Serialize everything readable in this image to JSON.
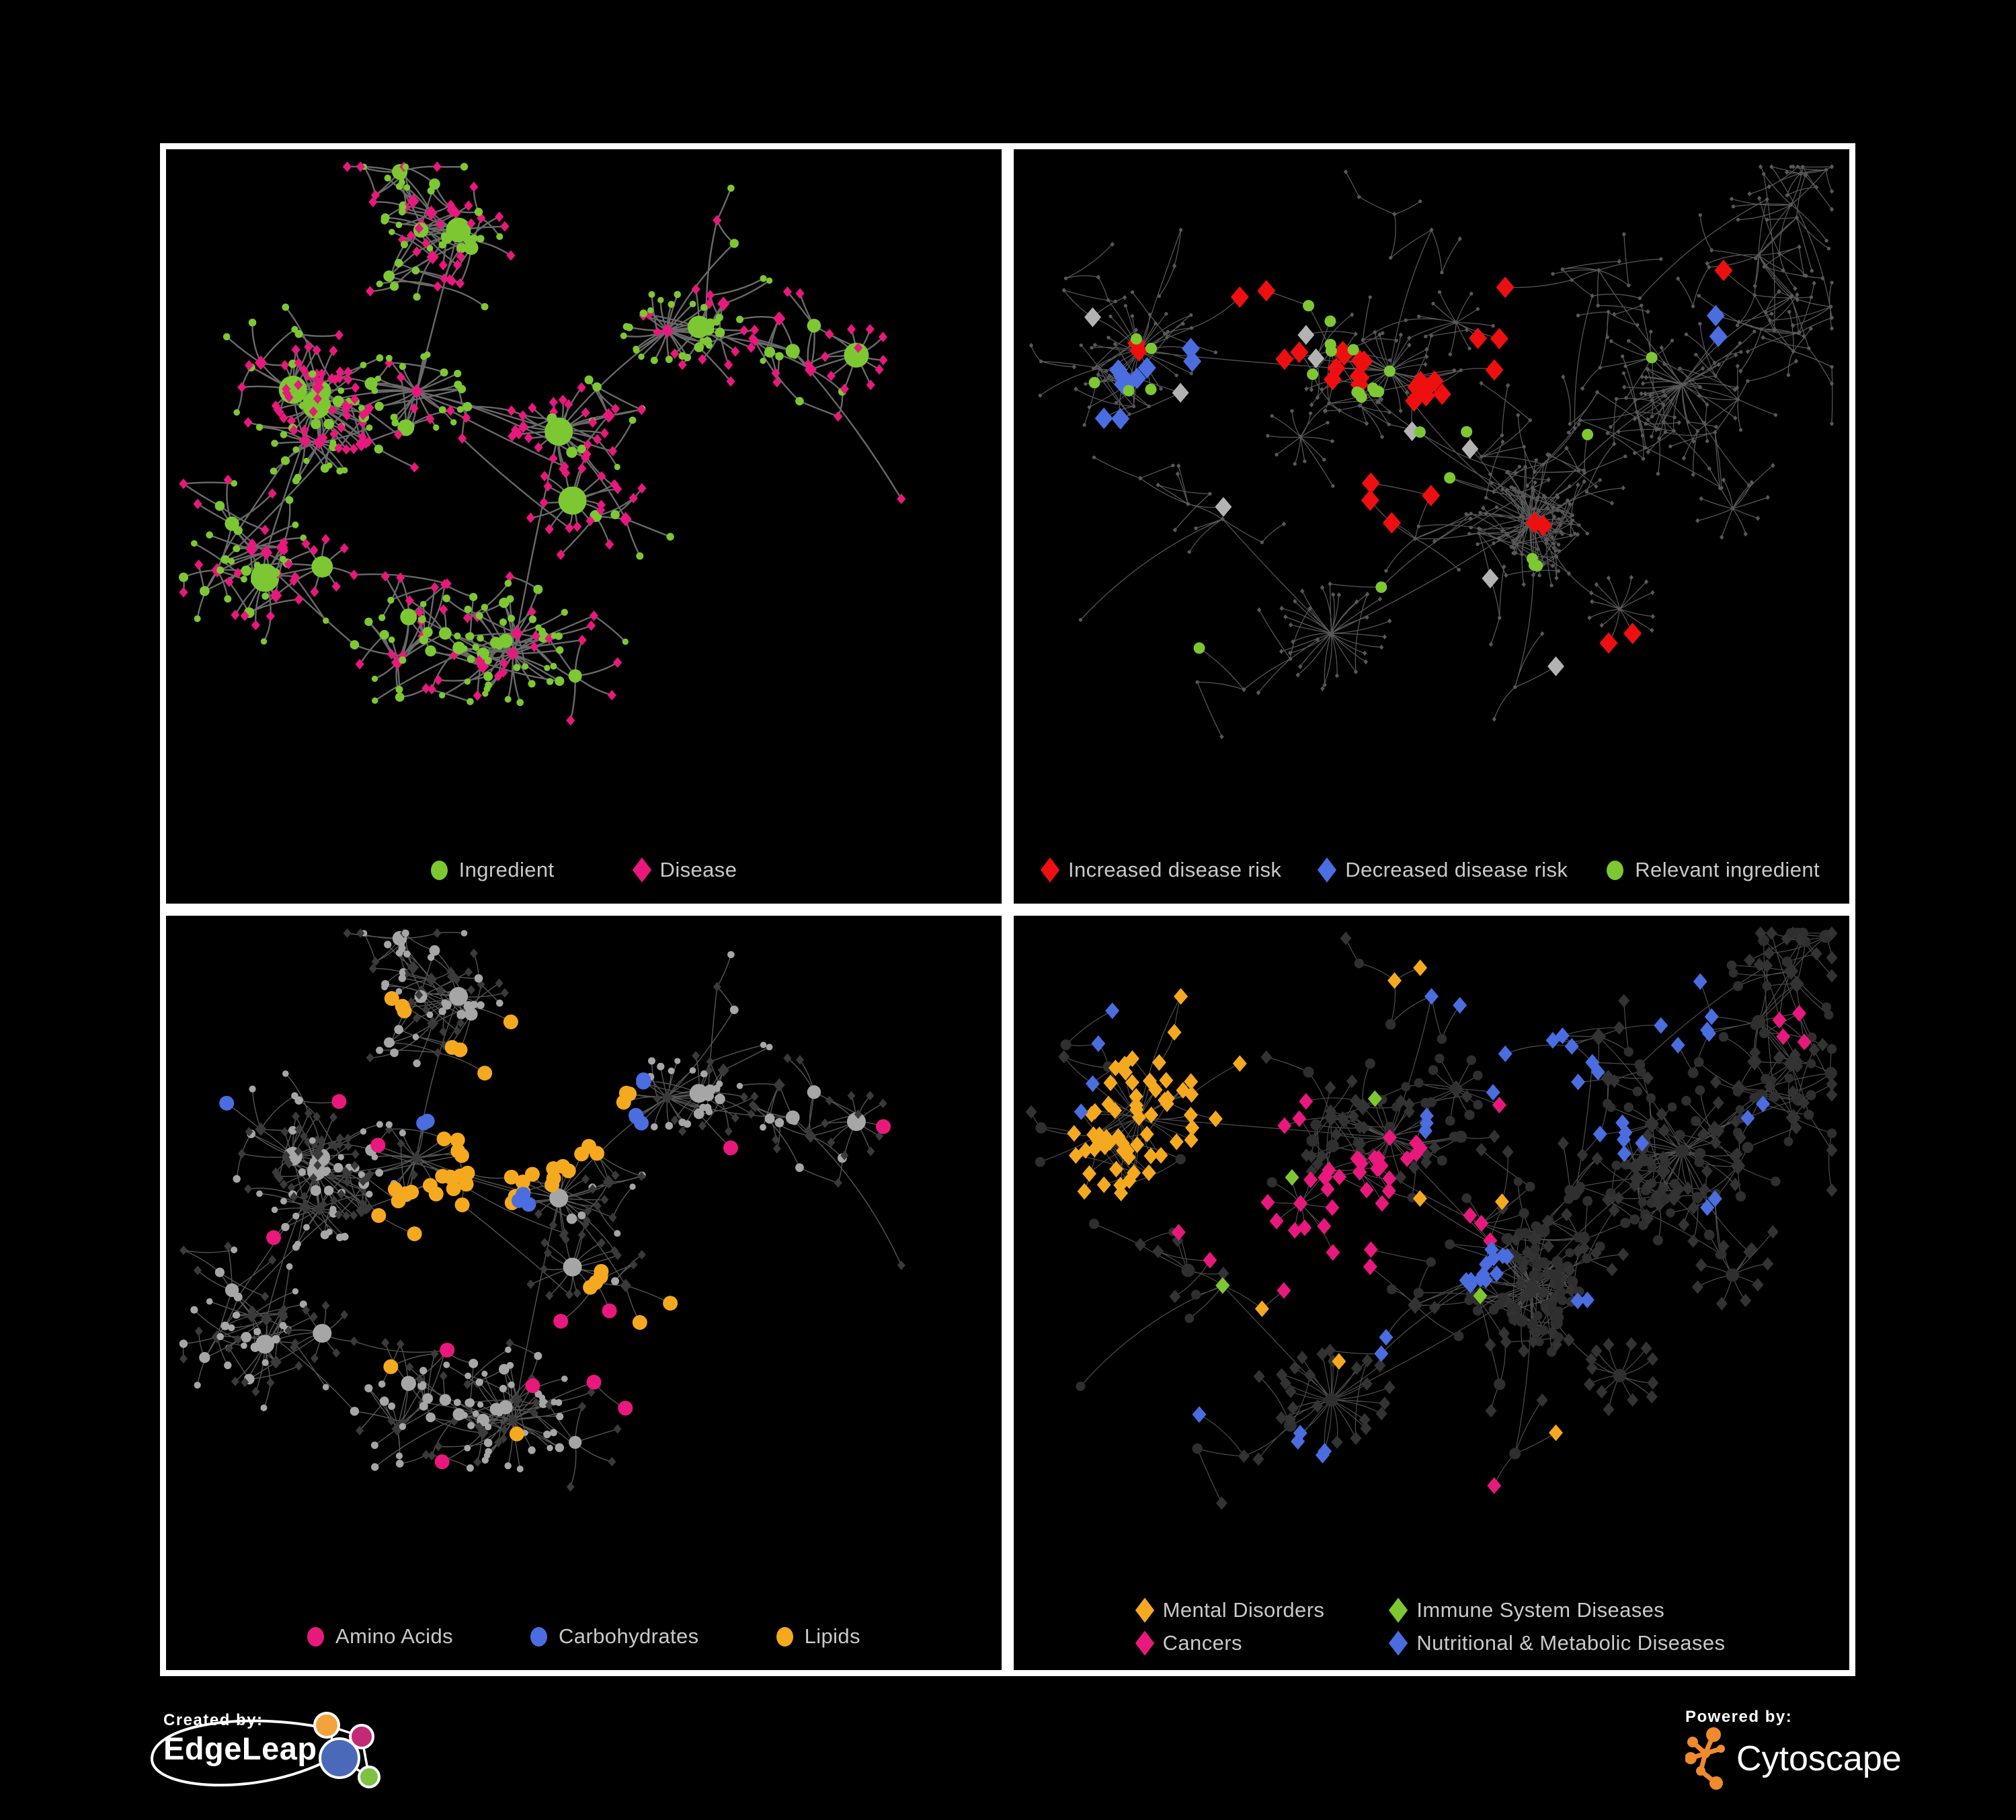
{
  "canvas": {
    "background": "#000000",
    "panel_border": "#ffffff",
    "legend_text_color": "#c9c9c9"
  },
  "palette": {
    "green": "#7dc832",
    "pink": "#e8187d",
    "red": "#ee1010",
    "blue": "#4a6de0",
    "orange": "#f5a91f",
    "gray_highlight": "#b3b3b3",
    "gray_node": "#a6a6a6",
    "dark_node": "#333333",
    "skeleton": "#585858"
  },
  "panels": [
    {
      "id": "ingredient-disease",
      "layout": "A",
      "legend_kind": "row",
      "legend_gap": 120,
      "legend": [
        {
          "label": "Ingredient",
          "shape": "circle",
          "color": "#7dc832"
        },
        {
          "label": "Disease",
          "shape": "diamond",
          "color": "#e8187d"
        }
      ],
      "style": {
        "edge": "#6f6f6f",
        "edgeW": 2.4,
        "edgeOp": 0.95,
        "mode": "bipartite",
        "circle": "#7dc832",
        "diamond": "#e8187d",
        "circleRBase": 4.6,
        "circleRDeg": 1.35,
        "circleRMax": 21,
        "diamondS": 6.6
      },
      "highlights": []
    },
    {
      "id": "disease-risk",
      "layout": "B",
      "legend_kind": "row",
      "legend_gap": 58,
      "legend": [
        {
          "label": "Increased disease risk",
          "shape": "diamond",
          "color": "#ee1010"
        },
        {
          "label": "Decreased disease risk",
          "shape": "diamond",
          "color": "#4a6de0"
        },
        {
          "label": "Relevant ingredient",
          "shape": "circle",
          "color": "#7dc832"
        }
      ],
      "style": {
        "edge": "#585858",
        "edgeW": 1.25,
        "edgeOp": 1,
        "mode": "tiny",
        "base": "#585858",
        "tinyR": 2.7,
        "tinyS": 3.2
      },
      "highlights": [
        {
          "shape": "diamond",
          "color": "#ee1010",
          "size": 13.5,
          "regions": [
            [
              0.4,
              0.33,
              0.1,
              9
            ],
            [
              0.5,
              0.38,
              0.09,
              7
            ],
            [
              0.3,
              0.27,
              0.07,
              4
            ],
            [
              0.57,
              0.3,
              0.06,
              3
            ],
            [
              0.15,
              0.3,
              0.05,
              2
            ],
            [
              0.46,
              0.52,
              0.06,
              4
            ],
            [
              0.72,
              0.73,
              0.04,
              2
            ],
            [
              0.76,
              0.79,
              0.03,
              1
            ],
            [
              0.6,
              0.13,
              0.04,
              1
            ],
            [
              0.85,
              0.17,
              0.04,
              1
            ],
            [
              0.63,
              0.55,
              0.06,
              2
            ]
          ]
        },
        {
          "shape": "diamond",
          "color": "#4a6de0",
          "size": 13.5,
          "regions": [
            [
              0.14,
              0.33,
              0.07,
              6
            ],
            [
              0.12,
              0.4,
              0.05,
              2
            ],
            [
              0.2,
              0.3,
              0.04,
              2
            ],
            [
              0.845,
              0.275,
              0.035,
              2
            ]
          ]
        },
        {
          "shape": "diamond",
          "color": "#b3b3b3",
          "size": 12.5,
          "regions": [
            [
              0.1,
              0.26,
              0.04,
              1
            ],
            [
              0.22,
              0.36,
              0.04,
              1
            ],
            [
              0.35,
              0.3,
              0.05,
              2
            ],
            [
              0.47,
              0.41,
              0.04,
              1
            ],
            [
              0.52,
              0.45,
              0.04,
              1
            ],
            [
              0.26,
              0.52,
              0.04,
              1
            ],
            [
              0.56,
              0.62,
              0.04,
              1
            ],
            [
              0.62,
              0.76,
              0.03,
              1
            ]
          ]
        },
        {
          "shape": "circle",
          "color": "#7dc832",
          "size": 8.5,
          "regions": [
            [
              0.42,
              0.33,
              0.1,
              8
            ],
            [
              0.33,
              0.28,
              0.07,
              5
            ],
            [
              0.15,
              0.32,
              0.06,
              4
            ],
            [
              0.5,
              0.45,
              0.06,
              3
            ],
            [
              0.62,
              0.62,
              0.035,
              3
            ],
            [
              0.28,
              0.13,
              0.04,
              2
            ],
            [
              0.1,
              0.35,
              0.03,
              1
            ],
            [
              0.48,
              0.66,
              0.03,
              1
            ],
            [
              0.21,
              0.73,
              0.03,
              1
            ],
            [
              0.68,
              0.42,
              0.03,
              1
            ],
            [
              0.77,
              0.31,
              0.03,
              1
            ]
          ]
        }
      ]
    },
    {
      "id": "macronutrients",
      "layout": "A",
      "legend_kind": "row",
      "legend_gap": 115,
      "legend": [
        {
          "label": "Amino Acids",
          "shape": "circle",
          "color": "#e8187d"
        },
        {
          "label": "Carbohydrates",
          "shape": "circle",
          "color": "#4a6de0"
        },
        {
          "label": "Lipids",
          "shape": "circle",
          "color": "#f5a91f"
        }
      ],
      "style": {
        "edge": "#aaaaaa",
        "edgeW": 1.4,
        "edgeOp": 0.5,
        "mode": "bipartite",
        "circle": "#a6a6a6",
        "diamond": "#3a3a3a",
        "circleRBase": 4.6,
        "circleRDeg": 1.2,
        "circleRMax": 14,
        "diamondS": 6.0
      },
      "highlights": [
        {
          "shape": "circle",
          "color": "#f5a91f",
          "size": 11,
          "regions": [
            [
              0.44,
              0.27,
              0.09,
              22
            ],
            [
              0.37,
              0.36,
              0.08,
              12
            ],
            [
              0.3,
              0.45,
              0.06,
              6
            ],
            [
              0.52,
              0.55,
              0.04,
              4
            ],
            [
              0.26,
              0.14,
              0.05,
              3
            ],
            [
              0.58,
              0.1,
              0.03,
              1
            ],
            [
              0.68,
              0.5,
              0.04,
              2
            ],
            [
              0.62,
              0.62,
              0.035,
              3
            ],
            [
              0.25,
              0.66,
              0.03,
              1
            ],
            [
              0.73,
              0.6,
              0.03,
              2
            ],
            [
              0.8,
              0.55,
              0.03,
              1
            ],
            [
              0.42,
              0.76,
              0.03,
              1
            ],
            [
              0.15,
              0.8,
              0.03,
              1
            ]
          ]
        },
        {
          "shape": "circle",
          "color": "#4a6de0",
          "size": 11,
          "regions": [
            [
              0.47,
              0.26,
              0.06,
              5
            ],
            [
              0.41,
              0.32,
              0.05,
              3
            ],
            [
              0.05,
              0.25,
              0.03,
              1
            ],
            [
              0.77,
              0.62,
              0.03,
              1
            ],
            [
              0.37,
              0.3,
              0.04,
              2
            ]
          ]
        },
        {
          "shape": "circle",
          "color": "#e8187d",
          "size": 11,
          "regions": [
            [
              0.04,
              0.3,
              0.03,
              1
            ],
            [
              0.12,
              0.47,
              0.03,
              1
            ],
            [
              0.26,
              0.34,
              0.03,
              1
            ],
            [
              0.48,
              0.03,
              0.03,
              1
            ],
            [
              0.21,
              0.25,
              0.03,
              1
            ],
            [
              0.5,
              0.62,
              0.04,
              2
            ],
            [
              0.57,
              0.7,
              0.04,
              2
            ],
            [
              0.44,
              0.7,
              0.03,
              1
            ],
            [
              0.88,
              0.3,
              0.03,
              1
            ],
            [
              0.93,
              0.36,
              0.03,
              1
            ],
            [
              0.64,
              0.36,
              0.03,
              1
            ],
            [
              0.36,
              0.62,
              0.03,
              1
            ],
            [
              0.9,
              0.75,
              0.03,
              1
            ],
            [
              0.33,
              0.87,
              0.03,
              1
            ]
          ]
        }
      ]
    },
    {
      "id": "disease-categories",
      "layout": "B",
      "legend_kind": "grid2",
      "legend": [
        {
          "label": "Mental Disorders",
          "shape": "diamond",
          "color": "#f5a91f"
        },
        {
          "label": "Immune System Diseases",
          "shape": "diamond",
          "color": "#7dc832"
        },
        {
          "label": "Cancers",
          "shape": "diamond",
          "color": "#e8187d"
        },
        {
          "label": "Nutritional & Metabolic Diseases",
          "shape": "diamond",
          "color": "#4a6de0"
        }
      ],
      "style": {
        "edge": "#999999",
        "edgeW": 1.2,
        "edgeOp": 0.5,
        "mode": "dark",
        "circle": "#2f2f2f",
        "diamond": "#333333",
        "circleRBase": 6.5,
        "circleRDeg": 0.5,
        "circleRMax": 10,
        "diamondS": 8.5
      },
      "highlights": [
        {
          "shape": "diamond",
          "color": "#f5a91f",
          "size": 10.5,
          "regions": [
            [
              0.155,
              0.3,
              0.1,
              40
            ],
            [
              0.12,
              0.38,
              0.06,
              12
            ],
            [
              0.21,
              0.24,
              0.05,
              8
            ],
            [
              0.25,
              0.08,
              0.03,
              2
            ],
            [
              0.48,
              0.06,
              0.03,
              2
            ],
            [
              0.36,
              0.12,
              0.03,
              1
            ],
            [
              0.5,
              0.42,
              0.03,
              1
            ],
            [
              0.4,
              0.65,
              0.03,
              1
            ],
            [
              0.28,
              0.6,
              0.03,
              1
            ],
            [
              0.65,
              0.8,
              0.03,
              1
            ],
            [
              0.6,
              0.42,
              0.02,
              1
            ]
          ]
        },
        {
          "shape": "diamond",
          "color": "#e8187d",
          "size": 10.5,
          "regions": [
            [
              0.41,
              0.43,
              0.09,
              22
            ],
            [
              0.34,
              0.5,
              0.06,
              8
            ],
            [
              0.46,
              0.35,
              0.05,
              6
            ],
            [
              0.3,
              0.28,
              0.04,
              3
            ],
            [
              0.55,
              0.47,
              0.04,
              3
            ],
            [
              0.93,
              0.17,
              0.035,
              4
            ],
            [
              0.55,
              0.85,
              0.03,
              1
            ],
            [
              0.78,
              0.84,
              0.03,
              1
            ],
            [
              0.25,
              0.45,
              0.03,
              2
            ],
            [
              0.6,
              0.3,
              0.03,
              1
            ]
          ]
        },
        {
          "shape": "diamond",
          "color": "#4a6de0",
          "size": 10.5,
          "regions": [
            [
              0.56,
              0.52,
              0.05,
              12
            ],
            [
              0.64,
              0.25,
              0.06,
              8
            ],
            [
              0.72,
              0.33,
              0.05,
              6
            ],
            [
              0.8,
              0.12,
              0.05,
              6
            ],
            [
              0.55,
              0.05,
              0.04,
              3
            ],
            [
              0.13,
              0.1,
              0.04,
              3
            ],
            [
              0.08,
              0.3,
              0.03,
              2
            ],
            [
              0.36,
              0.78,
              0.035,
              4
            ],
            [
              0.5,
              0.3,
              0.04,
              3
            ],
            [
              0.85,
              0.45,
              0.03,
              2
            ],
            [
              0.68,
              0.6,
              0.03,
              2
            ],
            [
              0.47,
              0.63,
              0.03,
              2
            ],
            [
              0.25,
              0.72,
              0.03,
              1
            ],
            [
              0.9,
              0.3,
              0.03,
              2
            ]
          ]
        },
        {
          "shape": "diamond",
          "color": "#7dc832",
          "size": 10.5,
          "regions": [
            [
              0.3,
              0.33,
              0.02,
              1
            ],
            [
              0.43,
              0.28,
              0.02,
              1
            ],
            [
              0.34,
              0.43,
              0.02,
              1
            ],
            [
              0.56,
              0.56,
              0.02,
              1
            ],
            [
              0.27,
              0.55,
              0.02,
              1
            ],
            [
              0.52,
              0.75,
              0.02,
              1
            ],
            [
              0.6,
              0.05,
              0.02,
              1
            ],
            [
              0.1,
              0.52,
              0.02,
              1
            ]
          ]
        }
      ]
    }
  ],
  "layouts": {
    "A": {
      "seed": 7,
      "count": 430,
      "pref": 1.35,
      "step": [
        34,
        88
      ],
      "margin": 26,
      "clusters": [
        [
          0.47,
          0.42
        ],
        [
          0.3,
          0.36
        ],
        [
          0.6,
          0.27
        ],
        [
          0.18,
          0.38
        ],
        [
          0.42,
          0.72
        ],
        [
          0.75,
          0.3
        ],
        [
          0.35,
          0.12
        ],
        [
          0.88,
          0.52
        ],
        [
          0.12,
          0.6
        ],
        [
          0.55,
          0.55
        ],
        [
          0.68,
          0.14
        ],
        [
          0.25,
          0.82
        ]
      ],
      "bursts": [
        [
          0.42,
          0.74,
          22,
          70
        ],
        [
          0.6,
          0.27,
          18,
          55
        ],
        [
          0.3,
          0.36,
          16,
          60
        ],
        [
          0.5,
          0.52,
          14,
          55
        ],
        [
          0.18,
          0.38,
          12,
          55
        ],
        [
          0.86,
          0.33,
          10,
          50
        ],
        [
          0.47,
          0.42,
          12,
          50
        ],
        [
          0.22,
          0.62,
          8,
          45
        ]
      ],
      "extra": 70,
      "extraDist": 240
    },
    "B": {
      "seed": 13,
      "count": 500,
      "pref": 1.05,
      "step": [
        40,
        100
      ],
      "margin": 26,
      "clusters": [
        [
          0.45,
          0.33
        ],
        [
          0.15,
          0.3
        ],
        [
          0.38,
          0.3
        ],
        [
          0.62,
          0.55
        ],
        [
          0.38,
          0.72
        ],
        [
          0.8,
          0.35
        ],
        [
          0.5,
          0.12
        ],
        [
          0.25,
          0.55
        ],
        [
          0.7,
          0.18
        ],
        [
          0.88,
          0.5
        ],
        [
          0.2,
          0.12
        ],
        [
          0.6,
          0.8
        ],
        [
          0.08,
          0.7
        ],
        [
          0.93,
          0.22
        ]
      ],
      "bursts": [
        [
          0.4,
          0.7,
          26,
          75
        ],
        [
          0.62,
          0.57,
          20,
          60
        ],
        [
          0.15,
          0.3,
          18,
          65
        ],
        [
          0.45,
          0.33,
          16,
          60
        ],
        [
          0.78,
          0.78,
          12,
          50
        ],
        [
          0.3,
          0.4,
          10,
          50
        ],
        [
          0.55,
          0.22,
          10,
          50
        ],
        [
          0.85,
          0.6,
          8,
          45
        ]
      ],
      "extra": 55,
      "extraDist": 260
    }
  },
  "footer": {
    "created_by_label": "Created by:",
    "created_by_name": "EdgeLeap",
    "powered_by_label": "Powered by:",
    "powered_by_name": "Cytoscape",
    "edgeleap_logo_colors": {
      "orange": "#f2a33c",
      "magenta": "#c22a76",
      "blue": "#4a69b8",
      "green": "#7dc242",
      "outline": "#ffffff"
    },
    "cytoscape_logo_color": "#ef8b2d"
  }
}
